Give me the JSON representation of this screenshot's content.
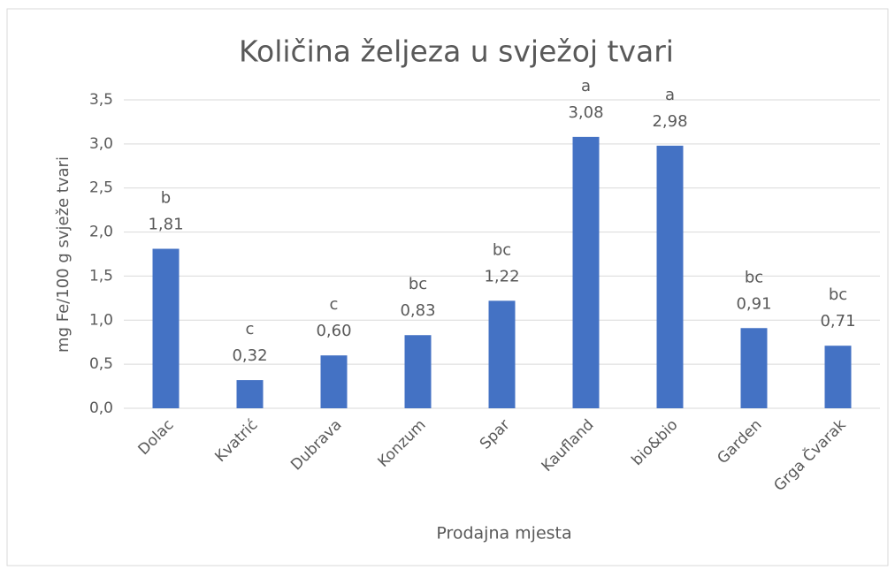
{
  "chart_data": {
    "type": "bar",
    "title": "Količina željeza u svježoj tvari",
    "y_label": "mg Fe/100 g svježe tvari",
    "x_label": "Prodajna mjesta",
    "categories": [
      "Dolac",
      "Kvatrić",
      "Dubrava",
      "Konzum",
      "Spar",
      "Kaufland",
      "bio&bio",
      "Garden",
      "Grga Čvarak"
    ],
    "values": [
      1.81,
      0.32,
      0.6,
      0.83,
      1.22,
      3.08,
      2.98,
      0.91,
      0.71
    ],
    "value_labels": [
      "1,81",
      "0,32",
      "0,60",
      "0,83",
      "1,22",
      "3,08",
      "2,98",
      "0,91",
      "0,71"
    ],
    "group_letters": [
      "b",
      "c",
      "c",
      "bc",
      "bc",
      "a",
      "a",
      "bc",
      "bc"
    ],
    "color": "#4472c4",
    "ylim": [
      0,
      3.5
    ],
    "yticks": [
      {
        "value": 0,
        "label": "0,0"
      },
      {
        "value": 0.5,
        "label": "0,5"
      },
      {
        "value": 1,
        "label": "1,0"
      },
      {
        "value": 1.5,
        "label": "1,5"
      },
      {
        "value": 2,
        "label": "2,0"
      },
      {
        "value": 2.5,
        "label": "2,5"
      },
      {
        "value": 3,
        "label": "3,0"
      },
      {
        "value": 3.5,
        "label": "3,5"
      }
    ],
    "grid": true
  }
}
